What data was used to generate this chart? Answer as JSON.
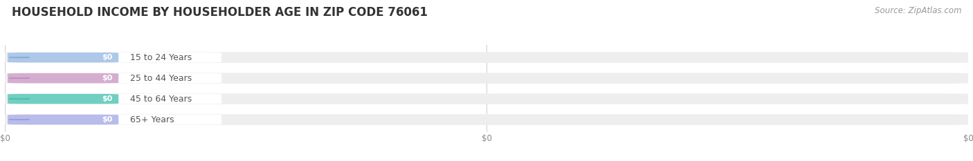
{
  "title": "HOUSEHOLD INCOME BY HOUSEHOLDER AGE IN ZIP CODE 76061",
  "source": "Source: ZipAtlas.com",
  "categories": [
    "15 to 24 Years",
    "25 to 44 Years",
    "45 to 64 Years",
    "65+ Years"
  ],
  "values": [
    0,
    0,
    0,
    0
  ],
  "bar_colors": [
    "#adc8e8",
    "#d4aed0",
    "#70cfc0",
    "#b8bcea"
  ],
  "bar_bg_color": "#eeeeee",
  "circle_colors": [
    "#8ab0d8",
    "#c090bc",
    "#50bfac",
    "#9aa0dc"
  ],
  "title_fontsize": 12,
  "source_fontsize": 8.5,
  "background_color": "#ffffff",
  "bar_value_label": "$0",
  "tick_labels": [
    "$0",
    "$0",
    "$0"
  ],
  "figwidth": 14.06,
  "figheight": 2.33
}
